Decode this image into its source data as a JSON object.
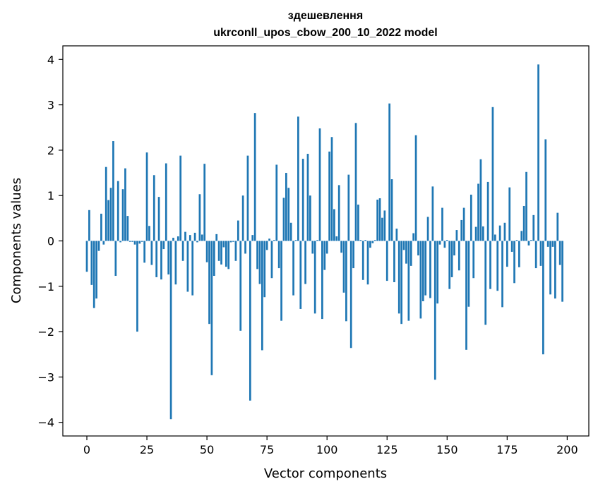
{
  "chart_data": {
    "type": "bar",
    "title": "здешевлення",
    "subtitle": "ukrconll_upos_cbow_200_10_2022 model",
    "xlabel": "Vector components",
    "ylabel": "Components values",
    "xlim": [
      -10,
      209
    ],
    "ylim": [
      -4.3,
      4.3
    ],
    "xticks": [
      0,
      25,
      50,
      75,
      100,
      125,
      150,
      175,
      200
    ],
    "yticks": [
      -4,
      -3,
      -2,
      -1,
      0,
      1,
      2,
      3,
      4
    ],
    "xtick_labels": [
      "0",
      "25",
      "50",
      "75",
      "100",
      "125",
      "150",
      "175",
      "200"
    ],
    "ytick_labels": [
      "−4",
      "−3",
      "−2",
      "−1",
      "0",
      "1",
      "2",
      "3",
      "4"
    ],
    "grid": false,
    "bar_color": "#1f77b4",
    "values": [
      -0.68,
      0.68,
      -0.97,
      -1.48,
      -1.27,
      -0.22,
      0.6,
      -0.08,
      1.63,
      0.9,
      1.17,
      2.2,
      -0.77,
      1.32,
      -0.03,
      1.14,
      1.6,
      0.55,
      -0.02,
      -0.02,
      -0.08,
      -2.0,
      -0.06,
      -0.02,
      -0.48,
      1.95,
      0.33,
      -0.53,
      1.45,
      -0.8,
      0.97,
      -0.85,
      -0.18,
      1.71,
      -0.74,
      -3.93,
      0.07,
      -0.96,
      0.1,
      1.88,
      -0.44,
      0.2,
      -1.12,
      0.13,
      -1.2,
      0.18,
      -0.03,
      1.03,
      0.14,
      1.7,
      -0.47,
      -1.83,
      -2.96,
      -0.77,
      0.15,
      -0.44,
      -0.52,
      -0.14,
      -0.57,
      -0.62,
      -0.03,
      -0.02,
      -0.44,
      0.45,
      -1.98,
      1.0,
      -0.28,
      1.88,
      -3.52,
      0.13,
      2.82,
      -0.62,
      -0.95,
      -2.41,
      -1.24,
      -0.2,
      0.05,
      -0.82,
      0.02,
      1.68,
      -0.6,
      -1.76,
      0.95,
      1.5,
      1.17,
      0.4,
      -1.2,
      0.02,
      2.74,
      -1.5,
      1.81,
      -0.95,
      1.92,
      1.0,
      -0.28,
      -1.6,
      0.02,
      2.48,
      -1.72,
      -0.64,
      -0.28,
      1.97,
      2.29,
      0.7,
      0.1,
      1.23,
      -0.26,
      -1.14,
      -1.77,
      1.46,
      -2.36,
      -0.6,
      2.6,
      0.8,
      0.02,
      -0.86,
      0.02,
      -0.96,
      -0.15,
      -0.05,
      0.02,
      0.91,
      0.94,
      0.51,
      0.67,
      -0.88,
      3.03,
      1.36,
      -0.91,
      0.27,
      -1.6,
      -1.83,
      -0.2,
      -0.5,
      -1.76,
      -0.55,
      0.17,
      2.33,
      -0.32,
      -1.71,
      -1.33,
      -1.2,
      0.53,
      -1.26,
      1.2,
      -3.06,
      -1.38,
      -0.08,
      0.73,
      -0.15,
      0.02,
      -1.06,
      -0.8,
      -0.32,
      0.24,
      -0.65,
      0.46,
      0.73,
      -2.4,
      -1.45,
      1.02,
      -0.82,
      0.31,
      1.26,
      1.8,
      0.32,
      -1.85,
      1.3,
      -1.06,
      2.95,
      0.14,
      -1.1,
      0.34,
      -1.46,
      0.4,
      -0.57,
      1.18,
      -0.24,
      -0.93,
      0.02,
      -0.58,
      0.22,
      0.77,
      1.52,
      -0.1,
      0.02,
      0.57,
      -0.6,
      3.89,
      -0.55,
      -2.5,
      2.24,
      -0.13,
      -1.18,
      -0.13,
      -1.27,
      0.62,
      -0.53,
      -1.34
    ]
  }
}
